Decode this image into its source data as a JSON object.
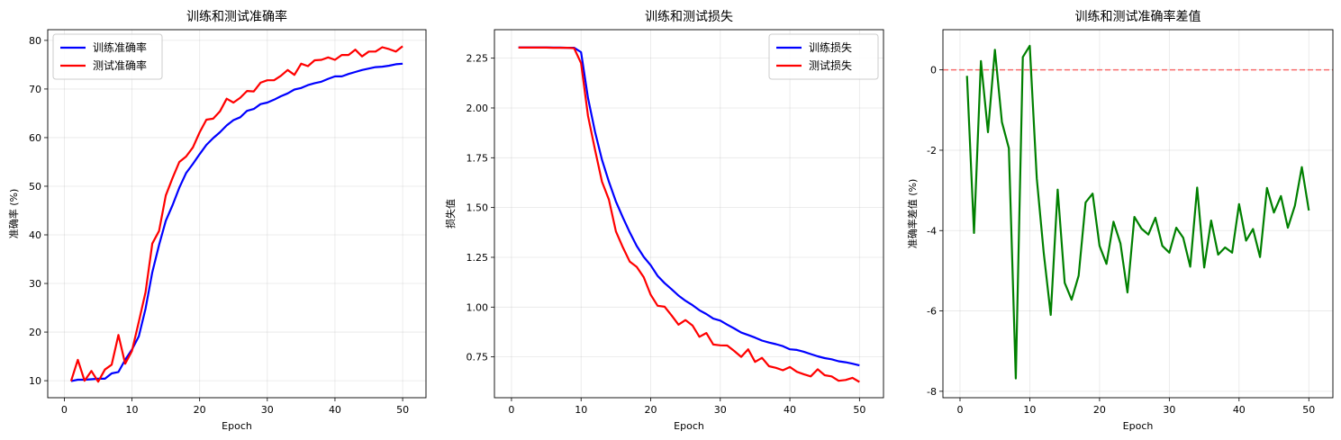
{
  "chart_data": [
    {
      "type": "line",
      "title": "训练和测试准确率",
      "xlabel": "Epoch",
      "ylabel": "准确率 (%)",
      "xlim": [
        -2.45,
        53.45
      ],
      "ylim": [
        6.5,
        82.2
      ],
      "xticks": [
        0,
        10,
        20,
        30,
        40,
        50
      ],
      "yticks": [
        10,
        20,
        30,
        40,
        50,
        60,
        70,
        80
      ],
      "grid": true,
      "legend": "upper left",
      "x": [
        1,
        2,
        3,
        4,
        5,
        6,
        7,
        8,
        9,
        10,
        11,
        12,
        13,
        14,
        15,
        16,
        17,
        18,
        19,
        20,
        21,
        22,
        23,
        24,
        25,
        26,
        27,
        28,
        29,
        30,
        31,
        32,
        33,
        34,
        35,
        36,
        37,
        38,
        39,
        40,
        41,
        42,
        43,
        44,
        45,
        46,
        47,
        48,
        49,
        50
      ],
      "series": [
        {
          "name": "训练准确率",
          "color": "#0000ff",
          "values": [
            9.9,
            10.2,
            10.2,
            10.3,
            10.4,
            10.4,
            11.5,
            11.8,
            14.3,
            16.4,
            19.1,
            24.8,
            32.3,
            37.9,
            42.9,
            46.1,
            49.7,
            52.7,
            54.6,
            56.6,
            58.5,
            59.9,
            61.1,
            62.5,
            63.6,
            64.2,
            65.5,
            65.9,
            66.9,
            67.2,
            67.8,
            68.5,
            69.1,
            69.9,
            70.2,
            70.8,
            71.2,
            71.5,
            72.1,
            72.6,
            72.6,
            73.1,
            73.5,
            73.9,
            74.2,
            74.5,
            74.6,
            74.8,
            75.1,
            75.2
          ]
        },
        {
          "name": "测试准确率",
          "color": "#ff0000",
          "values": [
            9.9,
            14.3,
            10.0,
            12.0,
            9.8,
            12.3,
            13.3,
            19.4,
            13.5,
            16.1,
            22.1,
            28.2,
            38.2,
            40.8,
            48.1,
            51.7,
            55.0,
            56.1,
            58.0,
            61.1,
            63.7,
            63.9,
            65.4,
            68.0,
            67.2,
            68.2,
            69.6,
            69.5,
            71.3,
            71.8,
            71.8,
            72.7,
            73.9,
            72.9,
            75.2,
            74.7,
            75.9,
            76.0,
            76.5,
            76.0,
            77.0,
            77.0,
            78.1,
            76.7,
            77.7,
            77.7,
            78.6,
            78.2,
            77.7,
            78.8
          ]
        }
      ]
    },
    {
      "type": "line",
      "title": "训练和测试损失",
      "xlabel": "Epoch",
      "ylabel": "损失值",
      "xlim": [
        -2.45,
        53.45
      ],
      "ylim": [
        0.545,
        2.393
      ],
      "xticks": [
        0,
        10,
        20,
        30,
        40,
        50
      ],
      "yticks": [
        0.75,
        1.0,
        1.25,
        1.5,
        1.75,
        2.0,
        2.25
      ],
      "grid": true,
      "legend": "upper right",
      "x": [
        1,
        2,
        3,
        4,
        5,
        6,
        7,
        8,
        9,
        10,
        11,
        12,
        13,
        14,
        15,
        16,
        17,
        18,
        19,
        20,
        21,
        22,
        23,
        24,
        25,
        26,
        27,
        28,
        29,
        30,
        31,
        32,
        33,
        34,
        35,
        36,
        37,
        38,
        39,
        40,
        41,
        42,
        43,
        44,
        45,
        46,
        47,
        48,
        49,
        50
      ],
      "series": [
        {
          "name": "训练损失",
          "color": "#0000ff",
          "values": [
            2.304,
            2.304,
            2.304,
            2.304,
            2.304,
            2.303,
            2.303,
            2.302,
            2.302,
            2.28,
            2.05,
            1.88,
            1.74,
            1.63,
            1.53,
            1.45,
            1.375,
            1.307,
            1.252,
            1.21,
            1.157,
            1.12,
            1.09,
            1.058,
            1.032,
            1.01,
            0.984,
            0.965,
            0.942,
            0.932,
            0.912,
            0.893,
            0.872,
            0.86,
            0.847,
            0.832,
            0.822,
            0.814,
            0.804,
            0.788,
            0.785,
            0.776,
            0.764,
            0.753,
            0.744,
            0.738,
            0.728,
            0.723,
            0.716,
            0.707
          ]
        },
        {
          "name": "测试损失",
          "color": "#ff0000",
          "values": [
            2.303,
            2.303,
            2.303,
            2.303,
            2.303,
            2.302,
            2.302,
            2.302,
            2.3,
            2.225,
            1.96,
            1.79,
            1.63,
            1.54,
            1.38,
            1.3,
            1.228,
            1.202,
            1.15,
            1.062,
            1.007,
            1.002,
            0.958,
            0.912,
            0.935,
            0.908,
            0.851,
            0.87,
            0.812,
            0.808,
            0.807,
            0.78,
            0.75,
            0.788,
            0.725,
            0.745,
            0.703,
            0.695,
            0.683,
            0.699,
            0.675,
            0.663,
            0.652,
            0.688,
            0.658,
            0.652,
            0.63,
            0.634,
            0.645,
            0.624
          ]
        }
      ]
    },
    {
      "type": "line",
      "title": "训练和测试准确率差值",
      "xlabel": "Epoch",
      "ylabel": "准确率差值 (%)",
      "xlim": [
        -2.45,
        53.45
      ],
      "ylim": [
        -8.16,
        1.0
      ],
      "xticks": [
        0,
        10,
        20,
        30,
        40,
        50
      ],
      "yticks": [
        -8,
        -6,
        -4,
        -2,
        0
      ],
      "grid": true,
      "reference_line": {
        "y": 0,
        "color": "#ff0000",
        "style": "dashed"
      },
      "x": [
        1,
        2,
        3,
        4,
        5,
        6,
        7,
        8,
        9,
        10,
        11,
        12,
        13,
        14,
        15,
        16,
        17,
        18,
        19,
        20,
        21,
        22,
        23,
        24,
        25,
        26,
        27,
        28,
        29,
        30,
        31,
        32,
        33,
        34,
        35,
        36,
        37,
        38,
        39,
        40,
        41,
        42,
        43,
        44,
        45,
        46,
        47,
        48,
        49,
        50
      ],
      "series": [
        {
          "color": "#008000",
          "values": [
            -0.15,
            -4.06,
            0.22,
            -1.55,
            0.5,
            -1.3,
            -1.95,
            -7.68,
            0.32,
            0.6,
            -2.7,
            -4.55,
            -6.1,
            -2.98,
            -5.3,
            -5.72,
            -5.12,
            -3.3,
            -3.08,
            -4.38,
            -4.83,
            -3.78,
            -4.32,
            -5.54,
            -3.66,
            -3.95,
            -4.1,
            -3.68,
            -4.38,
            -4.55,
            -3.93,
            -4.18,
            -4.9,
            -2.93,
            -4.92,
            -3.75,
            -4.6,
            -4.42,
            -4.55,
            -3.34,
            -4.25,
            -3.96,
            -4.66,
            -2.94,
            -3.55,
            -3.14,
            -3.93,
            -3.38,
            -2.42,
            -3.5
          ]
        }
      ]
    }
  ]
}
